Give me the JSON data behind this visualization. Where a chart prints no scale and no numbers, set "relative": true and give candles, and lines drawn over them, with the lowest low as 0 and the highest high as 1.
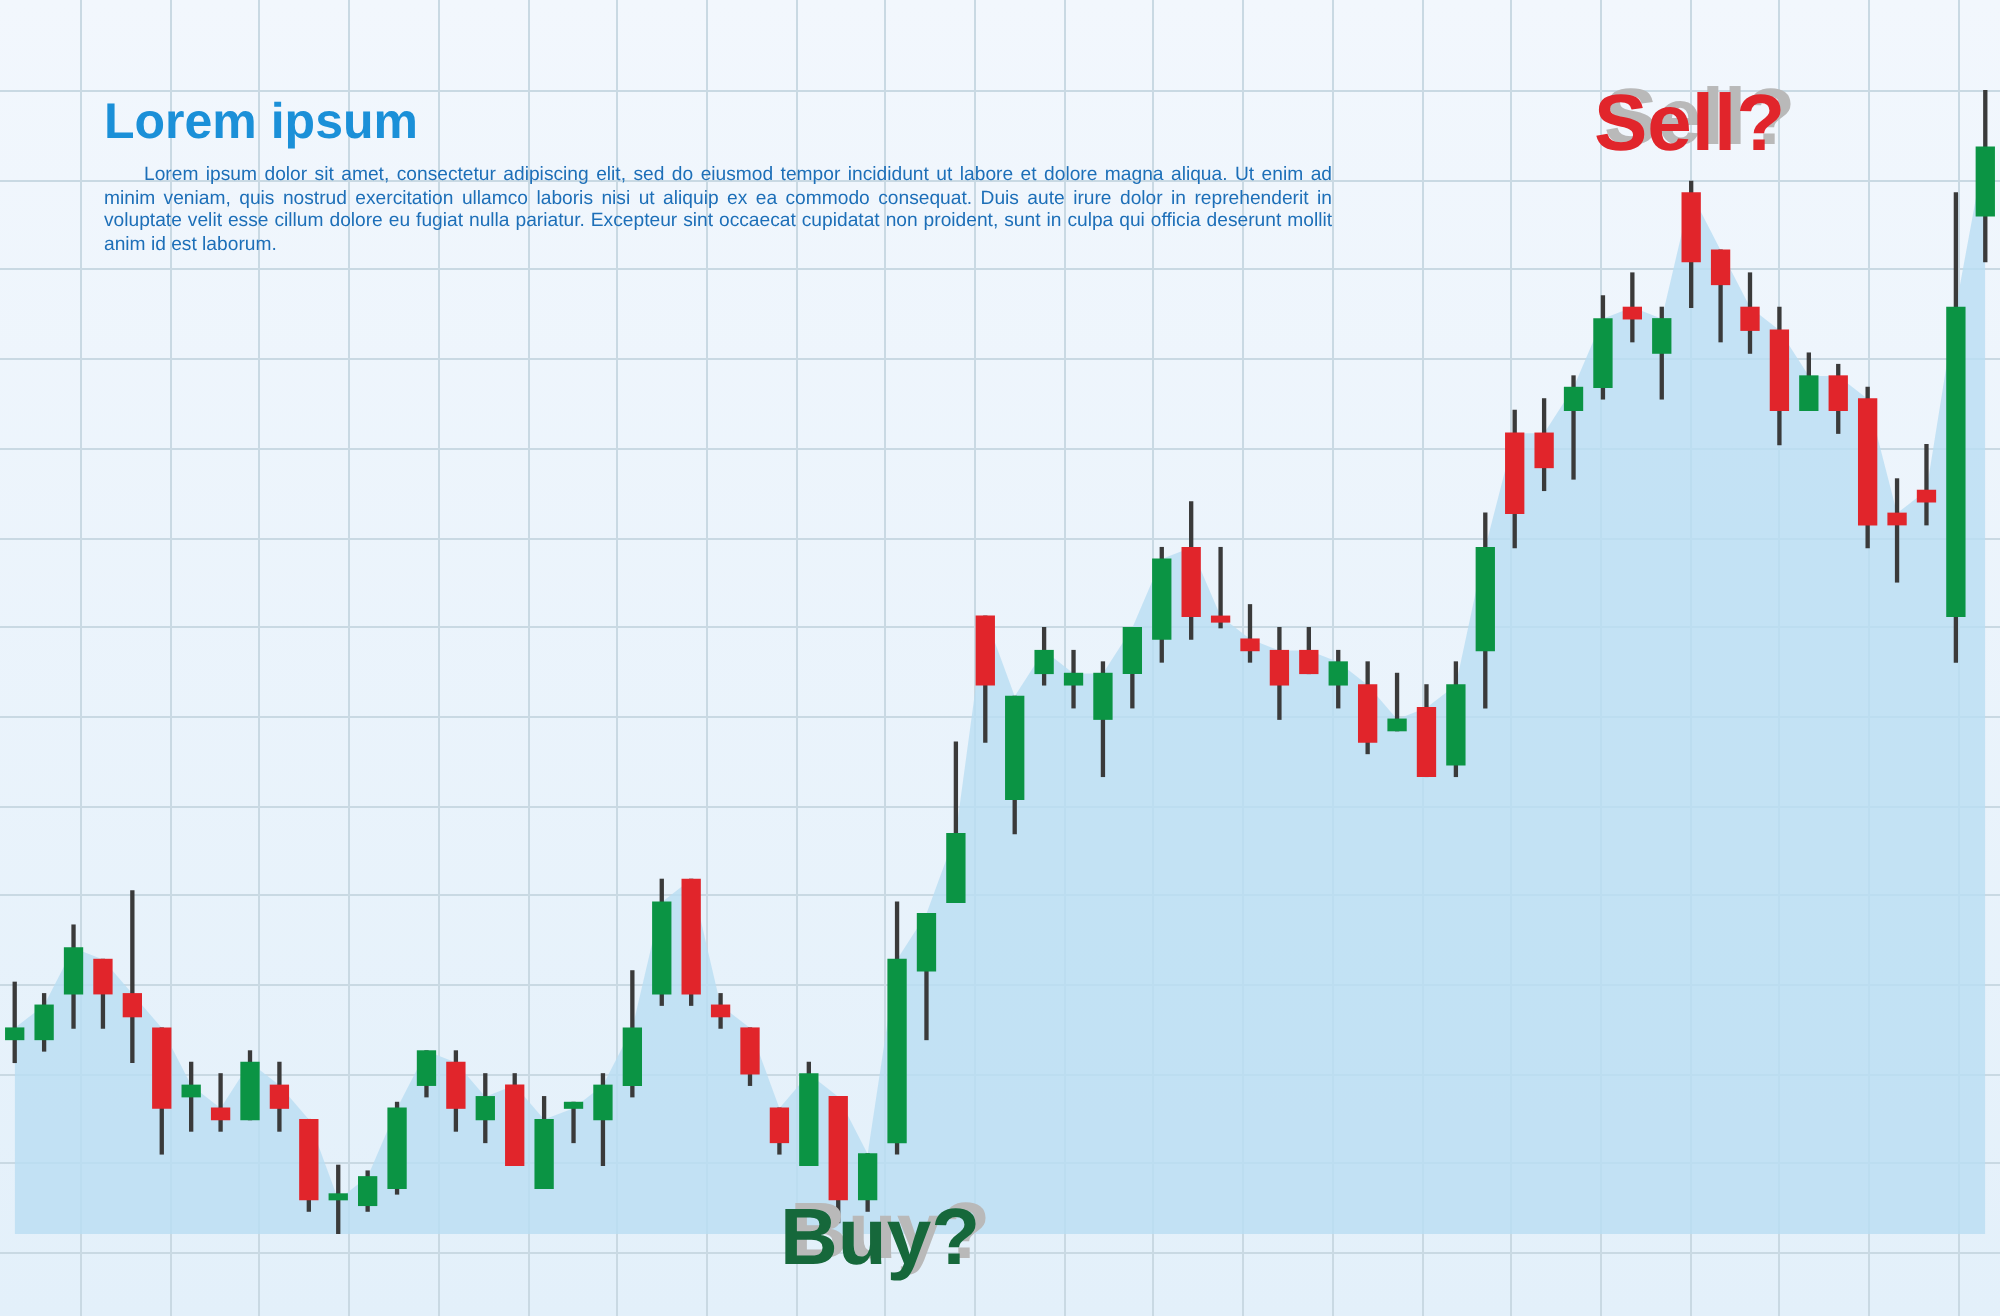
{
  "chart_data": {
    "type": "candlestick",
    "relative": true,
    "title": "Lorem ipsum",
    "subtitle": "Lorem ipsum dolor sit amet, consectetur adipiscing elit, sed do eiusmod tempor incididunt ut labore et dolore magna aliqua. Ut enim ad minim veniam, quis nostrud exercitation ullamco laboris nisi ut aliquip ex ea commodo consequat. Duis aute irure dolor in reprehenderit in voluptate velit esse cillum dolore eu fugiat nulla pariatur. Excepteur sint occaecat cupidatat non proident, sunt in culpa qui officia deserunt mollit anim id est laborum.",
    "annotations": [
      "Sell?",
      "Buy?"
    ],
    "grid": true,
    "categories": [
      null,
      null,
      null,
      null,
      null,
      null,
      null,
      null,
      null,
      null,
      null,
      null,
      null,
      null,
      null,
      null,
      null,
      null,
      null,
      null,
      null,
      null,
      null,
      null,
      null,
      null,
      null,
      null,
      null,
      null,
      null,
      null,
      null,
      null,
      null,
      null,
      null,
      null,
      null,
      null,
      null,
      null,
      null,
      null,
      null,
      null,
      null,
      null,
      null,
      null,
      null,
      null,
      null,
      null,
      null,
      null,
      null,
      null,
      null,
      null,
      null,
      null,
      null,
      null,
      null,
      null,
      null,
      null
    ],
    "ohlc": [
      [
        0.17,
        0.22,
        0.15,
        0.18
      ],
      [
        0.17,
        0.21,
        0.16,
        0.2
      ],
      [
        0.21,
        0.27,
        0.18,
        0.25
      ],
      [
        0.24,
        0.24,
        0.18,
        0.21
      ],
      [
        0.21,
        0.3,
        0.15,
        0.19
      ],
      [
        0.18,
        0.18,
        0.07,
        0.11
      ],
      [
        0.12,
        0.15,
        0.09,
        0.13
      ],
      [
        0.11,
        0.14,
        0.09,
        0.1
      ],
      [
        0.1,
        0.16,
        0.1,
        0.15
      ],
      [
        0.13,
        0.15,
        0.09,
        0.11
      ],
      [
        0.1,
        0.1,
        0.02,
        0.03
      ],
      [
        0.03,
        0.06,
        0,
        0.035
      ],
      [
        0.025,
        0.055,
        0.02,
        0.05
      ],
      [
        0.04,
        0.115,
        0.035,
        0.11
      ],
      [
        0.13,
        0.16,
        0.12,
        0.16
      ],
      [
        0.15,
        0.16,
        0.09,
        0.11
      ],
      [
        0.1,
        0.14,
        0.08,
        0.12
      ],
      [
        0.13,
        0.14,
        0.06,
        0.06
      ],
      [
        0.04,
        0.12,
        0.04,
        0.1
      ],
      [
        0.11,
        0.115,
        0.08,
        0.115
      ],
      [
        0.1,
        0.14,
        0.06,
        0.13
      ],
      [
        0.13,
        0.23,
        0.12,
        0.18
      ],
      [
        0.21,
        0.31,
        0.2,
        0.29
      ],
      [
        0.31,
        0.31,
        0.2,
        0.21
      ],
      [
        0.2,
        0.21,
        0.18,
        0.19
      ],
      [
        0.18,
        0.18,
        0.13,
        0.14
      ],
      [
        0.11,
        0.11,
        0.07,
        0.08
      ],
      [
        0.06,
        0.15,
        0.06,
        0.14
      ],
      [
        0.12,
        0.12,
        0.01,
        0.03
      ],
      [
        0.03,
        0.07,
        0.02,
        0.07
      ],
      [
        0.08,
        0.29,
        0.07,
        0.24
      ],
      [
        0.23,
        0.28,
        0.17,
        0.28
      ],
      [
        0.29,
        0.43,
        0.29,
        0.35
      ],
      [
        0.54,
        0.54,
        0.43,
        0.48
      ],
      [
        0.38,
        0.47,
        0.35,
        0.47
      ],
      [
        0.49,
        0.53,
        0.48,
        0.51
      ],
      [
        0.48,
        0.51,
        0.46,
        0.49
      ],
      [
        0.45,
        0.5,
        0.4,
        0.49
      ],
      [
        0.49,
        0.53,
        0.46,
        0.53
      ],
      [
        0.52,
        0.6,
        0.5,
        0.59
      ],
      [
        0.6,
        0.64,
        0.52,
        0.54
      ],
      [
        0.54,
        0.6,
        0.53,
        0.535
      ],
      [
        0.52,
        0.55,
        0.5,
        0.51
      ],
      [
        0.51,
        0.53,
        0.45,
        0.48
      ],
      [
        0.51,
        0.53,
        0.49,
        0.49
      ],
      [
        0.48,
        0.51,
        0.46,
        0.5
      ],
      [
        0.48,
        0.5,
        0.42,
        0.43
      ],
      [
        0.44,
        0.49,
        0.44,
        0.45
      ],
      [
        0.46,
        0.48,
        0.4,
        0.4
      ],
      [
        0.41,
        0.5,
        0.4,
        0.48
      ],
      [
        0.51,
        0.63,
        0.46,
        0.6
      ],
      [
        0.7,
        0.72,
        0.6,
        0.63
      ],
      [
        0.7,
        0.73,
        0.65,
        0.67
      ],
      [
        0.72,
        0.75,
        0.66,
        0.74
      ],
      [
        0.74,
        0.82,
        0.73,
        0.8
      ],
      [
        0.81,
        0.84,
        0.78,
        0.8
      ],
      [
        0.77,
        0.81,
        0.73,
        0.8
      ],
      [
        0.91,
        0.92,
        0.81,
        0.85
      ],
      [
        0.86,
        0.86,
        0.78,
        0.83
      ],
      [
        0.81,
        0.84,
        0.77,
        0.79
      ],
      [
        0.79,
        0.81,
        0.69,
        0.72
      ],
      [
        0.72,
        0.77,
        0.72,
        0.75
      ],
      [
        0.75,
        0.76,
        0.7,
        0.72
      ],
      [
        0.73,
        0.74,
        0.6,
        0.62
      ],
      [
        0.63,
        0.66,
        0.57,
        0.62
      ],
      [
        0.65,
        0.69,
        0.62,
        0.64
      ],
      [
        0.54,
        0.91,
        0.5,
        0.81
      ],
      [
        0.89,
        1,
        0.85,
        0.95
      ]
    ],
    "colors": [
      "#0b9444",
      "#0b9444",
      "#0b9444",
      "#e1252b",
      "#e1252b",
      "#e1252b",
      "#0b9444",
      "#e1252b",
      "#0b9444",
      "#e1252b",
      "#e1252b",
      "#0b9444",
      "#0b9444",
      "#0b9444",
      "#0b9444",
      "#e1252b",
      "#0b9444",
      "#e1252b",
      "#0b9444",
      "#0b9444",
      "#0b9444",
      "#0b9444",
      "#0b9444",
      "#e1252b",
      "#e1252b",
      "#e1252b",
      "#e1252b",
      "#0b9444",
      "#e1252b",
      "#0b9444",
      "#0b9444",
      "#0b9444",
      "#0b9444",
      "#e1252b",
      "#0b9444",
      "#0b9444",
      "#0b9444",
      "#0b9444",
      "#0b9444",
      "#0b9444",
      "#e1252b",
      "#e1252b",
      "#e1252b",
      "#e1252b",
      "#e1252b",
      "#0b9444",
      "#e1252b",
      "#0b9444",
      "#e1252b",
      "#0b9444",
      "#0b9444",
      "#e1252b",
      "#e1252b",
      "#0b9444",
      "#0b9444",
      "#e1252b",
      "#0b9444",
      "#e1252b",
      "#e1252b",
      "#e1252b",
      "#e1252b",
      "#0b9444",
      "#e1252b",
      "#e1252b",
      "#e1252b",
      "#e1252b",
      "#0b9444",
      "#0b9444"
    ],
    "series": [
      {
        "type": "area",
        "color": "#b9ddf3",
        "values": [
          0.18,
          0.2,
          0.25,
          0.24,
          0.21,
          0.18,
          0.13,
          0.11,
          0.15,
          0.13,
          0.1,
          0.03,
          0.05,
          0.11,
          0.16,
          0.15,
          0.12,
          0.13,
          0.1,
          0.11,
          0.13,
          0.18,
          0.29,
          0.31,
          0.2,
          0.18,
          0.11,
          0.14,
          0.12,
          0.07,
          0.24,
          0.28,
          0.35,
          0.54,
          0.47,
          0.51,
          0.49,
          0.49,
          0.53,
          0.59,
          0.6,
          0.54,
          0.52,
          0.51,
          0.51,
          0.5,
          0.48,
          0.45,
          0.46,
          0.48,
          0.6,
          0.7,
          0.7,
          0.74,
          0.8,
          0.81,
          0.8,
          0.91,
          0.86,
          0.81,
          0.79,
          0.75,
          0.75,
          0.73,
          0.63,
          0.65,
          0.81,
          0.95
        ]
      }
    ]
  }
}
